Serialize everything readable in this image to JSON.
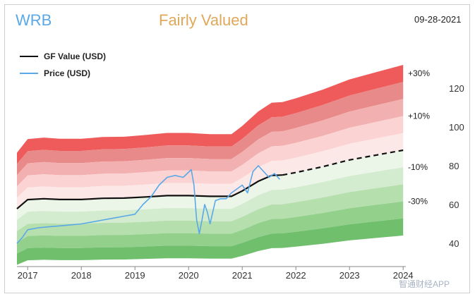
{
  "header": {
    "ticker": "WRB",
    "status": "Fairly Valued",
    "date": "09-28-2021"
  },
  "legend": {
    "gf_value": "GF Value (USD)",
    "price": "Price (USD)"
  },
  "watermark": "智通财经APP",
  "colors": {
    "gf_line": "#111111",
    "price_line": "#5aa8e8",
    "band_top": "#ef5b5b",
    "band_bottom": "#5fb862"
  },
  "chart_data": {
    "type": "area",
    "title": "",
    "xlabel": "",
    "ylabel": "",
    "xlim": [
      2016.8,
      2024.05
    ],
    "ylim": [
      28,
      140
    ],
    "x_ticks": [
      2017,
      2018,
      2019,
      2020,
      2021,
      2022,
      2023,
      2024
    ],
    "x_tick_labels": [
      "2017",
      "2018",
      "2019",
      "2020",
      "2021",
      "2022",
      "2023",
      "2024"
    ],
    "y_ticks": [
      40,
      60,
      80,
      100,
      120
    ],
    "y_tick_labels": [
      "40",
      "60",
      "80",
      "100",
      "120"
    ],
    "band_labels": [
      "+30%",
      "+10%",
      "-10%",
      "-30%"
    ],
    "band_multipliers": [
      1.5,
      1.4,
      1.3,
      1.2,
      1.1,
      1.0,
      0.9,
      0.8,
      0.7,
      0.6,
      0.5
    ],
    "gf_value": {
      "name": "GF Value (USD)",
      "x": [
        2016.8,
        2017.0,
        2017.3,
        2017.6,
        2018.0,
        2018.4,
        2018.8,
        2019.2,
        2019.6,
        2020.0,
        2020.4,
        2020.8,
        2021.0,
        2021.3,
        2021.55,
        2021.75,
        2022.0,
        2022.5,
        2023.0,
        2023.5,
        2024.0
      ],
      "y": [
        57.8,
        62.5,
        63.0,
        62.6,
        62.6,
        63.2,
        63.3,
        63.9,
        64.6,
        64.6,
        64.2,
        64.2,
        67.0,
        72.0,
        75.0,
        75.2,
        76.5,
        79.5,
        83.0,
        85.5,
        88.0
      ],
      "projected_from": 2021.75
    },
    "price": {
      "name": "Price (USD)",
      "x": [
        2016.8,
        2016.9,
        2017.0,
        2017.2,
        2017.4,
        2017.6,
        2017.8,
        2018.0,
        2018.2,
        2018.4,
        2018.6,
        2018.8,
        2019.0,
        2019.15,
        2019.3,
        2019.45,
        2019.6,
        2019.75,
        2019.9,
        2020.05,
        2020.1,
        2020.15,
        2020.2,
        2020.25,
        2020.3,
        2020.35,
        2020.4,
        2020.5,
        2020.6,
        2020.7,
        2020.8,
        2020.9,
        2021.0,
        2021.1,
        2021.2,
        2021.3,
        2021.4,
        2021.5,
        2021.6,
        2021.7
      ],
      "y": [
        40,
        43,
        47,
        48,
        48.5,
        49,
        49.5,
        50,
        51,
        52,
        53,
        54,
        55,
        60,
        64,
        70,
        74,
        75,
        74,
        78,
        70,
        52,
        45,
        52,
        60,
        56,
        50,
        62,
        63,
        63,
        66,
        68,
        70,
        66,
        77,
        80,
        77,
        74,
        76,
        73
      ]
    }
  }
}
